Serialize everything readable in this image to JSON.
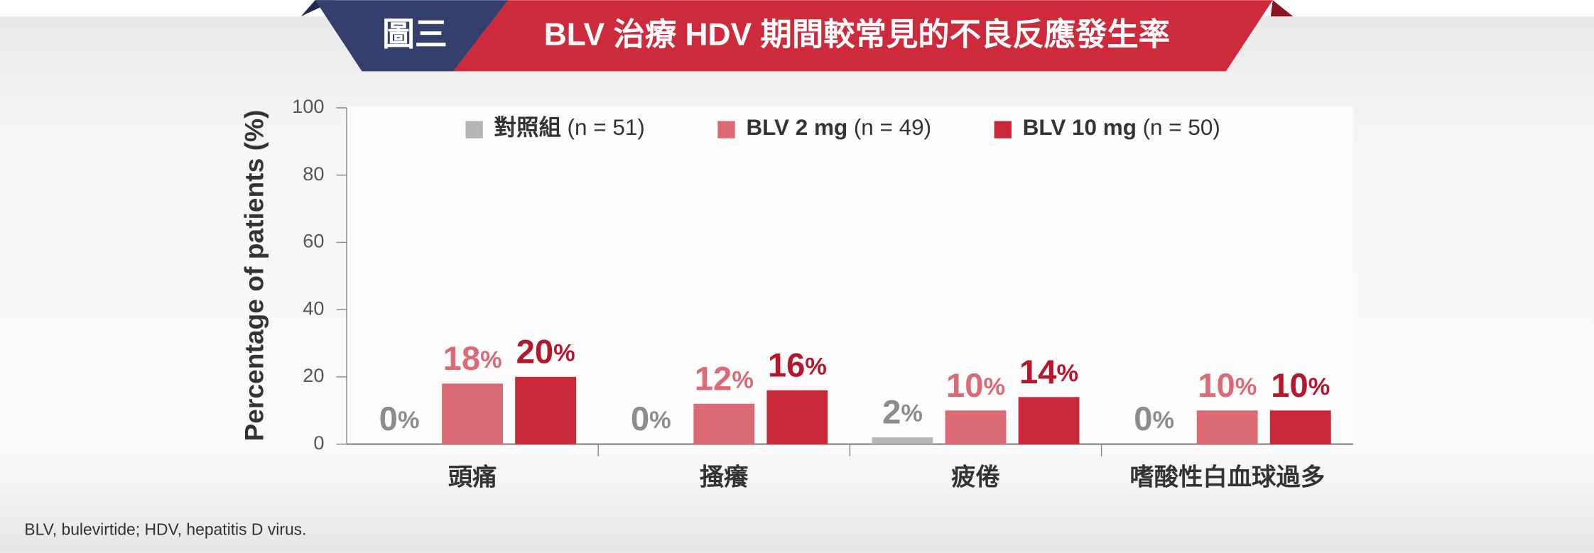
{
  "header": {
    "badge": "圖三",
    "title": "BLV 治療 HDV 期間較常見的不良反應發生率"
  },
  "chart_data": {
    "type": "bar",
    "ylabel": "Percentage of patients (%)",
    "categories": [
      "頭痛",
      "搔癢",
      "疲倦",
      "嗜酸性白血球過多"
    ],
    "series": [
      {
        "name": "對照組",
        "note": "(n = 51)",
        "color": "#b5b5b5",
        "label_color": "#8c8c8c",
        "values": [
          0,
          0,
          2,
          0
        ],
        "value_labels": [
          "0%",
          "0%",
          "2%",
          "0%"
        ]
      },
      {
        "name": "BLV 2 mg",
        "note": "(n = 49)",
        "color": "#dc6a75",
        "label_color": "#dc6a75",
        "values": [
          18,
          12,
          10,
          10
        ],
        "value_labels": [
          "18%",
          "12%",
          "10%",
          "10%"
        ]
      },
      {
        "name": "BLV 10 mg",
        "note": "(n = 50)",
        "color": "#c8283a",
        "label_color": "#b3182b",
        "values": [
          20,
          16,
          14,
          10
        ],
        "value_labels": [
          "20%",
          "16%",
          "14%",
          "10%"
        ]
      }
    ],
    "ylim": [
      0,
      100
    ],
    "yticks": [
      0,
      20,
      40,
      60,
      80,
      100
    ],
    "legend": "top"
  },
  "footnote": "BLV, bulevirtide; HDV, hepatitis D virus."
}
